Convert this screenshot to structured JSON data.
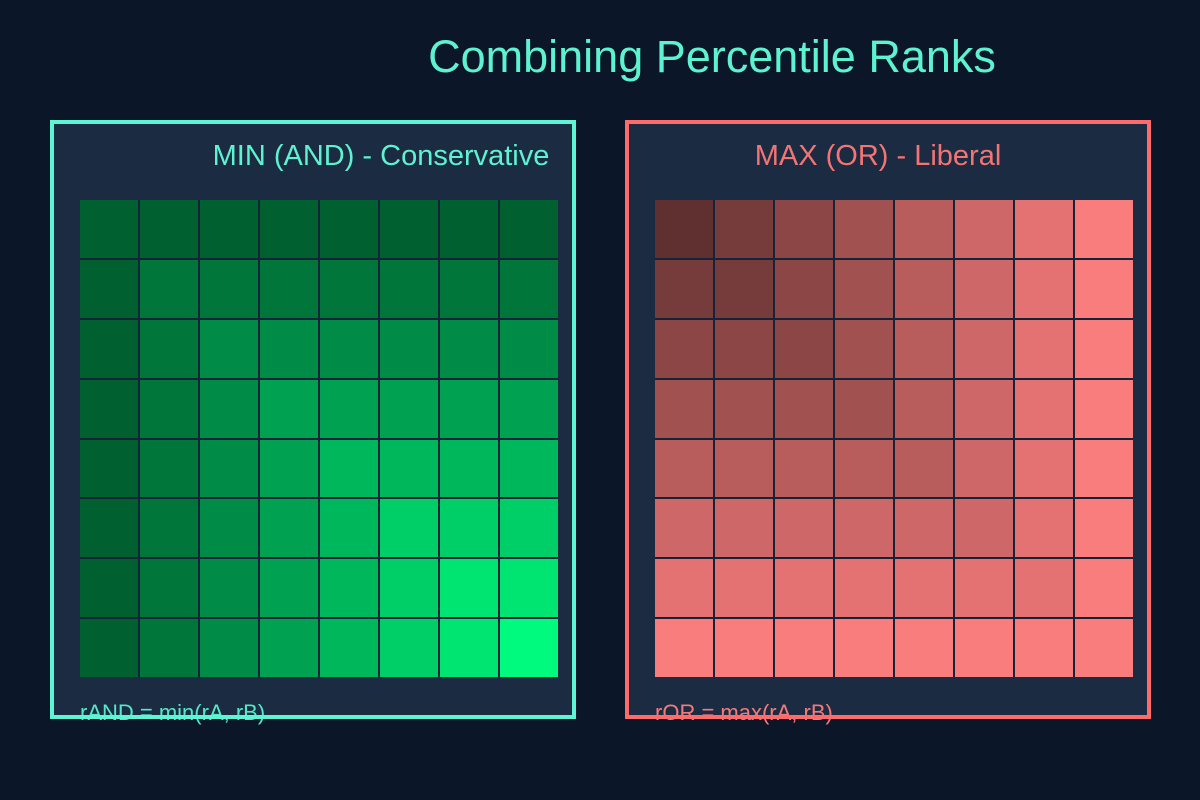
{
  "page": {
    "title": "Combining Percentile Ranks",
    "background": "#0B1728",
    "panel_background": "#1A2B42",
    "grid_line_color": "#16243A"
  },
  "accents": {
    "mint_text": "#5EF3D0",
    "mint_border": "#5EF5D4",
    "salmon_text": "#F47474",
    "salmon_border": "#FF6B6B"
  },
  "chart_data": [
    {
      "type": "heatmap",
      "id": "min_and",
      "title": "MIN (AND) - Conservative",
      "formula_label": "rAND = min(rA, rB)",
      "rows": 8,
      "cols": 8,
      "value_rule": "value = min(row_index, col_index), indices 1-8",
      "values": [
        [
          1,
          1,
          1,
          1,
          1,
          1,
          1,
          1
        ],
        [
          1,
          2,
          2,
          2,
          2,
          2,
          2,
          2
        ],
        [
          1,
          2,
          3,
          3,
          3,
          3,
          3,
          3
        ],
        [
          1,
          2,
          3,
          4,
          4,
          4,
          4,
          4
        ],
        [
          1,
          2,
          3,
          4,
          5,
          5,
          5,
          5
        ],
        [
          1,
          2,
          3,
          4,
          5,
          6,
          6,
          6
        ],
        [
          1,
          2,
          3,
          4,
          5,
          6,
          7,
          7
        ],
        [
          1,
          2,
          3,
          4,
          5,
          6,
          7,
          8
        ]
      ],
      "color_ramp": [
        "#00602F",
        "#00763B",
        "#008C46",
        "#00A251",
        "#00B85C",
        "#00CE67",
        "#00E472",
        "#00FA7D"
      ],
      "accent_text": "#5EF3D0",
      "accent_border": "#5EF5D4"
    },
    {
      "type": "heatmap",
      "id": "max_or",
      "title": "MAX (OR) - Liberal",
      "formula_label": "rOR = max(rA, rB)",
      "rows": 8,
      "cols": 8,
      "value_rule": "value = max(row_index, col_index), indices 1-8",
      "values": [
        [
          1,
          2,
          3,
          4,
          5,
          6,
          7,
          8
        ],
        [
          2,
          2,
          3,
          4,
          5,
          6,
          7,
          8
        ],
        [
          3,
          3,
          3,
          4,
          5,
          6,
          7,
          8
        ],
        [
          4,
          4,
          4,
          4,
          5,
          6,
          7,
          8
        ],
        [
          5,
          5,
          5,
          5,
          5,
          6,
          7,
          8
        ],
        [
          6,
          6,
          6,
          6,
          6,
          6,
          7,
          8
        ],
        [
          7,
          7,
          7,
          7,
          7,
          7,
          7,
          8
        ],
        [
          8,
          8,
          8,
          8,
          8,
          8,
          8,
          8
        ]
      ],
      "color_ramp": [
        "#603030",
        "#763B3B",
        "#8C4646",
        "#A25151",
        "#B85C5C",
        "#CE6767",
        "#E47272",
        "#FA7D7D"
      ],
      "accent_text": "#F47474",
      "accent_border": "#FF6B6B"
    }
  ]
}
